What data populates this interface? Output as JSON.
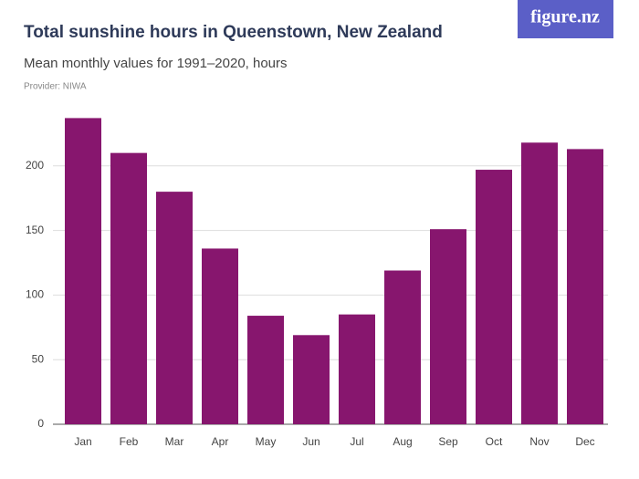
{
  "logo": "figure.nz",
  "chart_data": {
    "type": "bar",
    "title": "Total sunshine hours in Queenstown, New Zealand",
    "subtitle": "Mean monthly values for 1991–2020, hours",
    "source": "Provider: NIWA",
    "categories": [
      "Jan",
      "Feb",
      "Mar",
      "Apr",
      "May",
      "Jun",
      "Jul",
      "Aug",
      "Sep",
      "Oct",
      "Nov",
      "Dec"
    ],
    "values": [
      237,
      210,
      180,
      136,
      84,
      69,
      85,
      119,
      151,
      197,
      218,
      213
    ],
    "color": "#87166e",
    "ylim": [
      0,
      250
    ],
    "yticks": [
      0,
      50,
      100,
      150,
      200
    ],
    "grid": true
  }
}
